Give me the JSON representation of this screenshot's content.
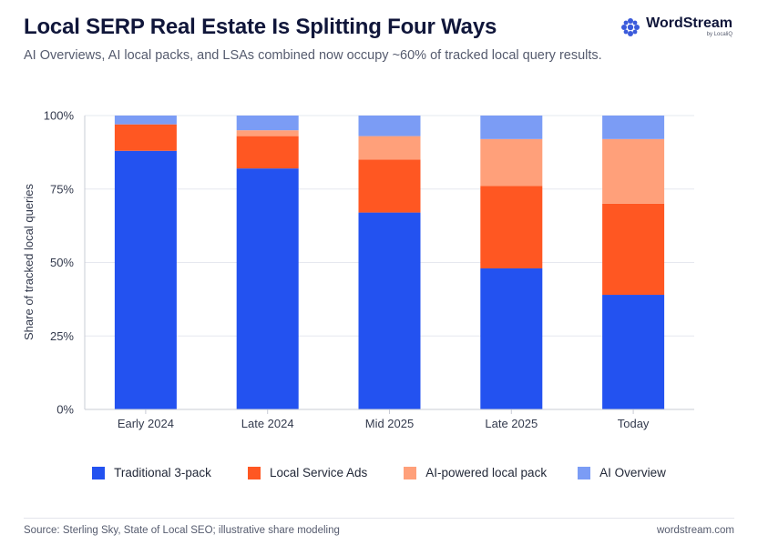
{
  "header": {
    "title": "Local SERP Real Estate Is Splitting Four Ways",
    "subtitle": "AI Overviews, AI local packs, and LSAs combined now occupy ~60% of tracked local query results."
  },
  "brand": {
    "name": "WordStream",
    "sub": "by LocaliQ",
    "color": "#3b5bdb"
  },
  "footer": {
    "source": "Source: Sterling Sky, State of Local SEO; illustrative share modeling",
    "site": "wordstream.com"
  },
  "chart_data": {
    "type": "bar",
    "stacked": true,
    "title": "Local SERP Real Estate Is Splitting Four Ways",
    "xlabel": "",
    "ylabel": "Share of tracked local queries",
    "ylim": [
      0,
      100
    ],
    "yticks": [
      "0%",
      "25%",
      "50%",
      "75%",
      "100%"
    ],
    "ytick_values": [
      0,
      25,
      50,
      75,
      100
    ],
    "grid": true,
    "legend_position": "bottom",
    "categories": [
      "Early 2024",
      "Late 2024",
      "Mid 2025",
      "Late 2025",
      "Today"
    ],
    "series": [
      {
        "name": "Traditional 3-pack",
        "color": "#2352f0",
        "values": [
          88,
          82,
          67,
          48,
          39
        ]
      },
      {
        "name": "Local Service Ads",
        "color": "#ff5722",
        "values": [
          9,
          11,
          18,
          28,
          31
        ]
      },
      {
        "name": "AI-powered local pack",
        "color": "#ffa07a",
        "values": [
          0,
          2,
          8,
          16,
          22
        ]
      },
      {
        "name": "AI Overview",
        "color": "#7b9cf5",
        "values": [
          3,
          5,
          7,
          8,
          8
        ]
      }
    ]
  }
}
